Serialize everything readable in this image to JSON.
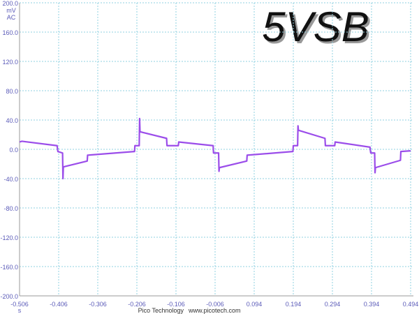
{
  "chart_data": {
    "type": "line",
    "title": "5VSB",
    "y_units": [
      "mV",
      "AC"
    ],
    "x_unit": "s",
    "source": "Pico Technology",
    "url": "www.picotech.com",
    "xlim": [
      -0.506,
      0.494
    ],
    "xticks": [
      -0.506,
      -0.406,
      -0.306,
      -0.206,
      -0.106,
      -0.006,
      0.094,
      0.194,
      0.294,
      0.394,
      0.494
    ],
    "ylim": [
      -200,
      200
    ],
    "yticks": [
      {
        "value": 200,
        "label": "200.0"
      },
      {
        "value": 160,
        "label": "160.0"
      },
      {
        "value": 120,
        "label": "120.0"
      },
      {
        "value": 80,
        "label": "80.0"
      },
      {
        "value": 40,
        "label": "40.0"
      },
      {
        "value": 0,
        "label": "0.0"
      },
      {
        "value": -40,
        "label": "-40.0"
      },
      {
        "value": -80,
        "label": "-80.0"
      },
      {
        "value": -120,
        "label": "-120.0"
      },
      {
        "value": -160,
        "label": "-160.0"
      },
      {
        "value": -200,
        "label": "-200.0"
      }
    ],
    "grid": true,
    "color": "#9b4dea",
    "x": [
      -0.506,
      -0.5,
      -0.41,
      -0.408,
      -0.396,
      -0.395,
      -0.394,
      -0.333,
      -0.332,
      -0.212,
      -0.211,
      -0.2,
      -0.199,
      -0.198,
      -0.13,
      -0.129,
      -0.1,
      -0.099,
      -0.011,
      -0.01,
      0.003,
      0.004,
      0.005,
      0.075,
      0.076,
      0.193,
      0.194,
      0.205,
      0.206,
      0.207,
      0.275,
      0.276,
      0.3,
      0.301,
      0.39,
      0.392,
      0.402,
      0.403,
      0.404,
      0.468,
      0.469,
      0.494
    ],
    "values": [
      10,
      11,
      5,
      -3,
      -5,
      -40,
      -24,
      -16,
      -8,
      -3,
      5,
      5,
      42,
      24,
      15,
      5,
      5,
      10,
      5,
      -5,
      -5,
      -30,
      -25,
      -16,
      -8,
      -3,
      5,
      5,
      32,
      26,
      15,
      5,
      5,
      10,
      3,
      -5,
      -5,
      -32,
      -25,
      -15,
      -3,
      -2
    ]
  }
}
